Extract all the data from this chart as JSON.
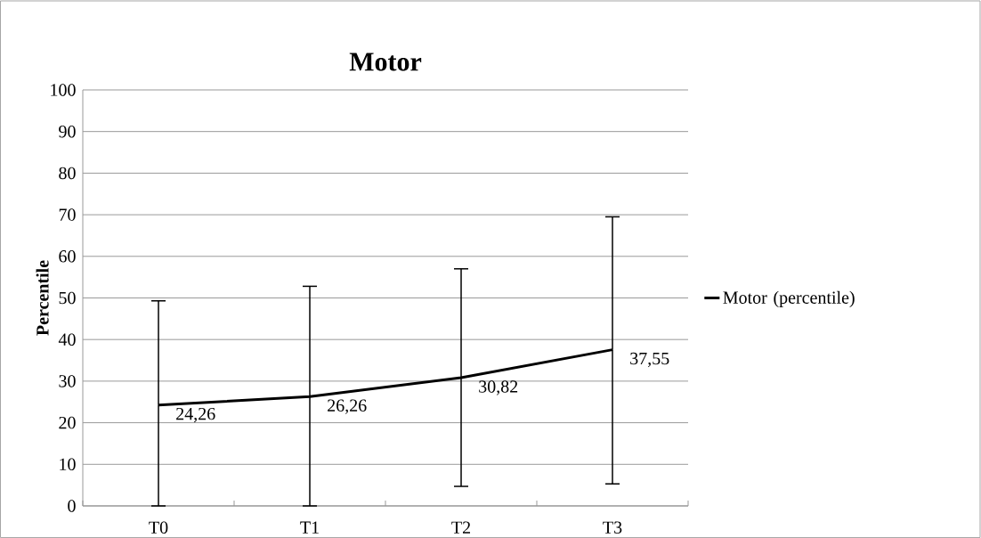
{
  "chart_data": {
    "type": "line",
    "title": "Motor",
    "ylabel": "Percentile",
    "categories": [
      "T0",
      "T1",
      "T2",
      "T3"
    ],
    "series": [
      {
        "name": "Motor (percentile)",
        "color": "#000000",
        "values": [
          24.26,
          26.26,
          30.82,
          37.55
        ],
        "value_labels": [
          "24,26",
          "26,26",
          "30,82",
          "37,55"
        ],
        "errors": [
          [
            0,
            49.3
          ],
          [
            0,
            52.8
          ],
          [
            4.7,
            57.0
          ],
          [
            5.3,
            69.5
          ]
        ]
      }
    ],
    "ylim": [
      0,
      100
    ],
    "yticks": [
      0,
      10,
      20,
      30,
      40,
      50,
      60,
      70,
      80,
      90,
      100
    ],
    "grid": "y",
    "legend": "right",
    "marker": "none",
    "line_style": "solid"
  }
}
